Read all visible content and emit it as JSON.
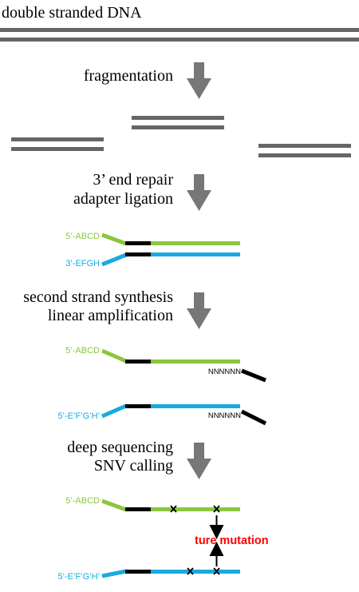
{
  "colors": {
    "dna": "#666666",
    "arrow": "#777777",
    "green": "#8cc63f",
    "blue": "#19aadf",
    "black": "#000000",
    "mutation_label": "#ff0000"
  },
  "labels": {
    "title": "double stranded DNA",
    "step1": "fragmentation",
    "step2_line1": "3’ end repair",
    "step2_line2": "adapter ligation",
    "step3_line1": "second strand synthesis",
    "step3_line2": "linear amplification",
    "step4_line1": "deep sequencing",
    "step4_line2": "SNV calling",
    "mutation": "ture mutation"
  },
  "sequences": {
    "top_5prime": "5’-ABCD",
    "bottom_3prime": "3’-EFGH",
    "bottom_5prime_complement": "5’-E’F’G’H’",
    "random_primer": "NNNNNN"
  },
  "icons": {
    "step_arrow": "down-arrow-icon",
    "mutation_marker": "cross-icon"
  }
}
